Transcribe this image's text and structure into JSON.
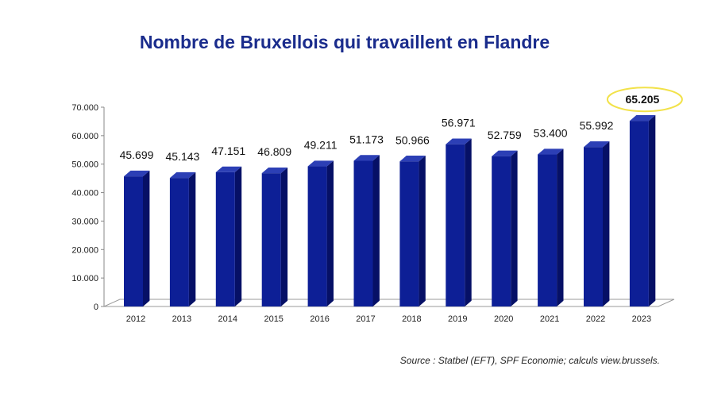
{
  "chart_data": {
    "type": "bar",
    "title": "Nombre de Bruxellois qui travaillent en Flandre",
    "categories": [
      "2012",
      "2013",
      "2014",
      "2015",
      "2016",
      "2017",
      "2018",
      "2019",
      "2020",
      "2021",
      "2022",
      "2023"
    ],
    "values": [
      45699,
      45143,
      47151,
      46809,
      49211,
      51173,
      50966,
      56971,
      52759,
      53400,
      55992,
      65205
    ],
    "value_labels": [
      "45.699",
      "45.143",
      "47.151",
      "46.809",
      "49.211",
      "51.173",
      "50.966",
      "56.971",
      "52.759",
      "53.400",
      "55.992",
      "65.205"
    ],
    "ylim": [
      0,
      70000
    ],
    "yticks": [
      0,
      10000,
      20000,
      30000,
      40000,
      50000,
      60000,
      70000
    ],
    "ytick_labels": [
      "0",
      "10.000",
      "20.000",
      "30.000",
      "40.000",
      "50.000",
      "60.000",
      "70.000"
    ],
    "xlabel": "",
    "ylabel": "",
    "grid": false,
    "style": "3d-column",
    "highlighted_category": "2023",
    "colors": {
      "bar_front": "#0d1f96",
      "bar_side": "#061066",
      "bar_top": "#2c3fb5",
      "title": "#1a2c8c",
      "highlight_ellipse": "#f2e24a"
    }
  },
  "source": "Source : Statbel (EFT), SPF Economie; calculs view.brussels."
}
